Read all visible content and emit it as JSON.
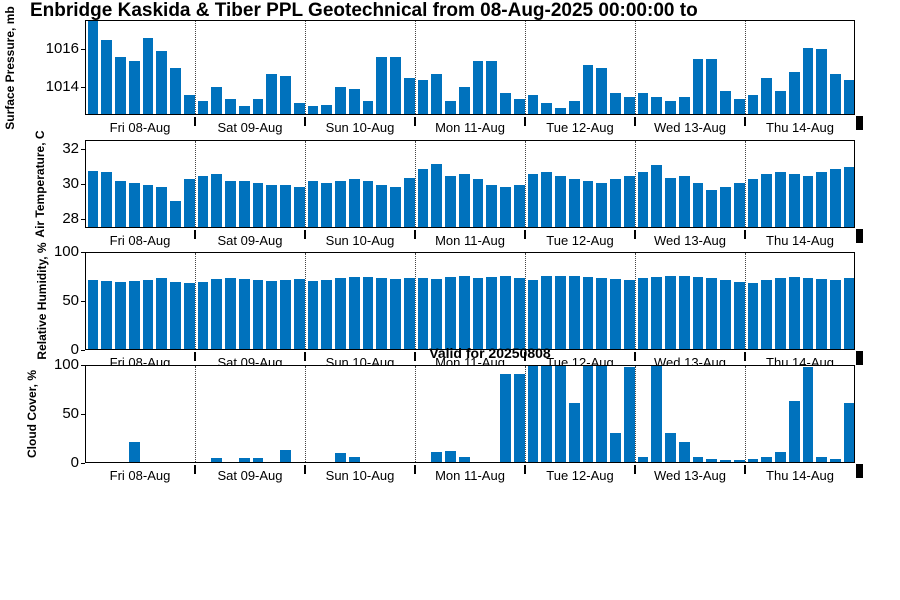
{
  "title": "Enbridge  Kaskida & Tiber PPL Geotechnical from 08-Aug-2025 00:00:00 to",
  "annotation": {
    "valid_label": "Valid for 20250808"
  },
  "bar_color": "#0072BD",
  "axis_color": "#000000",
  "days": [
    "Fri 08-Aug",
    "Sat 09-Aug",
    "Sun 10-Aug",
    "Mon 11-Aug",
    "Tue 12-Aug",
    "Wed 13-Aug",
    "Thu 14-Aug"
  ],
  "chart_data": [
    {
      "type": "bar",
      "ylabel": "Surface Pressure, mb",
      "ylim": [
        1012.5,
        1017.5
      ],
      "yticks": [
        1014,
        1016
      ],
      "grid": "vertical-dotted",
      "categories": [
        "Fri 08-Aug",
        "Sat 09-Aug",
        "Sun 10-Aug",
        "Mon 11-Aug",
        "Tue 12-Aug",
        "Wed 13-Aug",
        "Thu 14-Aug"
      ],
      "bars_per_category": 8,
      "values": [
        1017.4,
        1016.4,
        1015.5,
        1015.3,
        1016.5,
        1015.8,
        1014.9,
        1013.5,
        1013.2,
        1013.9,
        1013.3,
        1012.9,
        1013.3,
        1014.6,
        1014.5,
        1013.1,
        1012.9,
        1013.0,
        1013.9,
        1013.8,
        1013.2,
        1015.5,
        1015.5,
        1014.4,
        1014.3,
        1014.6,
        1013.2,
        1013.9,
        1015.3,
        1015.3,
        1013.6,
        1013.3,
        1013.5,
        1013.1,
        1012.8,
        1013.2,
        1015.1,
        1014.9,
        1013.6,
        1013.4,
        1013.6,
        1013.4,
        1013.2,
        1013.4,
        1015.4,
        1015.4,
        1013.7,
        1013.3,
        1013.5,
        1014.4,
        1013.7,
        1014.7,
        1016.0,
        1015.9,
        1014.6,
        1014.3
      ]
    },
    {
      "type": "bar",
      "ylabel": "Air Temperature, C",
      "ylim": [
        27.5,
        32.5
      ],
      "yticks": [
        28,
        30,
        32
      ],
      "grid": "vertical-dotted",
      "categories": [
        "Fri 08-Aug",
        "Sat 09-Aug",
        "Sun 10-Aug",
        "Mon 11-Aug",
        "Tue 12-Aug",
        "Wed 13-Aug",
        "Thu 14-Aug"
      ],
      "bars_per_category": 8,
      "values": [
        30.7,
        30.6,
        30.1,
        30.0,
        29.9,
        29.8,
        29.0,
        30.2,
        30.4,
        30.5,
        30.1,
        30.1,
        30.0,
        29.9,
        29.9,
        29.8,
        30.1,
        30.0,
        30.1,
        30.2,
        30.1,
        29.9,
        29.8,
        30.3,
        30.8,
        31.1,
        30.4,
        30.5,
        30.2,
        29.9,
        29.8,
        29.9,
        30.5,
        30.6,
        30.4,
        30.2,
        30.1,
        30.0,
        30.2,
        30.4,
        30.6,
        31.0,
        30.3,
        30.4,
        30.0,
        29.6,
        29.8,
        30.0,
        30.2,
        30.5,
        30.6,
        30.5,
        30.4,
        30.6,
        30.8,
        30.9
      ]
    },
    {
      "type": "bar",
      "ylabel": "Relative Humidity, %",
      "ylim": [
        0,
        100
      ],
      "yticks": [
        0,
        50,
        100
      ],
      "grid": "vertical-dotted",
      "categories": [
        "Fri 08-Aug",
        "Sat 09-Aug",
        "Sun 10-Aug",
        "Mon 11-Aug",
        "Tue 12-Aug",
        "Wed 13-Aug",
        "Thu 14-Aug"
      ],
      "bars_per_category": 8,
      "values": [
        70,
        69,
        68,
        69,
        70,
        72,
        68,
        67,
        68,
        71,
        72,
        71,
        70,
        69,
        70,
        71,
        69,
        70,
        72,
        73,
        73,
        72,
        71,
        72,
        72,
        71,
        73,
        74,
        72,
        73,
        75,
        72,
        70,
        74,
        74,
        74,
        73,
        72,
        71,
        70,
        72,
        73,
        74,
        75,
        73,
        72,
        70,
        68,
        67,
        70,
        72,
        73,
        72,
        71,
        70,
        72
      ]
    },
    {
      "type": "bar",
      "ylabel": "Cloud Cover, %",
      "ylim": [
        0,
        100
      ],
      "yticks": [
        0,
        50,
        100
      ],
      "grid": "vertical-dotted",
      "categories": [
        "Fri 08-Aug",
        "Sat 09-Aug",
        "Sun 10-Aug",
        "Mon 11-Aug",
        "Tue 12-Aug",
        "Wed 13-Aug",
        "Thu 14-Aug"
      ],
      "bars_per_category": 8,
      "values": [
        0,
        0,
        0,
        20,
        0,
        0,
        0,
        0,
        0,
        4,
        0,
        4,
        4,
        0,
        12,
        0,
        0,
        0,
        9,
        5,
        0,
        0,
        0,
        0,
        0,
        10,
        11,
        5,
        0,
        0,
        90,
        90,
        98,
        100,
        100,
        60,
        100,
        100,
        30,
        97,
        5,
        100,
        30,
        20,
        5,
        3,
        2,
        2,
        3,
        5,
        10,
        62,
        97,
        5,
        3,
        60
      ]
    }
  ]
}
